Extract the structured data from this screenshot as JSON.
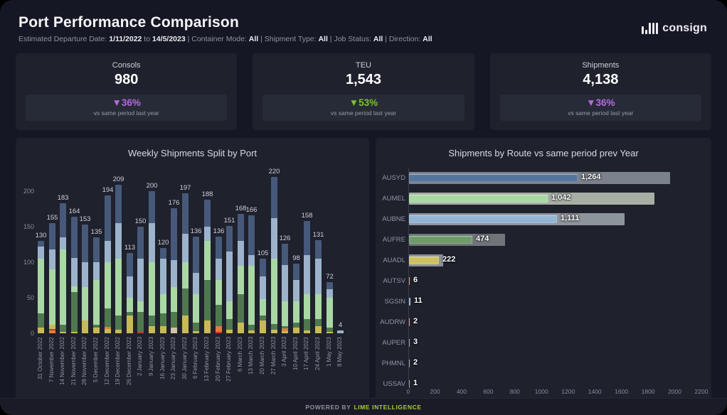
{
  "header": {
    "title": "Port Performance Comparison",
    "filters": [
      {
        "text": "Estimated Departure Date: ",
        "bold": false
      },
      {
        "text": "1/11/2022",
        "bold": true
      },
      {
        "text": " to ",
        "bold": false
      },
      {
        "text": "14/5/2023",
        "bold": true
      },
      {
        "text": " | Container Mode: ",
        "bold": false
      },
      {
        "text": "All",
        "bold": true
      },
      {
        "text": " | Shipment Type: ",
        "bold": false
      },
      {
        "text": "All",
        "bold": true
      },
      {
        "text": " | Job Status: ",
        "bold": false
      },
      {
        "text": "All",
        "bold": true
      },
      {
        "text": " | Direction: ",
        "bold": false
      },
      {
        "text": "All",
        "bold": true
      }
    ],
    "logo_text": "consign"
  },
  "kpi_cards": [
    {
      "label": "Consols",
      "value": "980",
      "delta_icon": "▼",
      "delta": "36%",
      "delta_color": "#b56be0",
      "note": "vs same period last year"
    },
    {
      "label": "TEU",
      "value": "1,543",
      "delta_icon": "▼",
      "delta": "53%",
      "delta_color": "#7cc22e",
      "note": "vs same period last year"
    },
    {
      "label": "Shipments",
      "value": "4,138",
      "delta_icon": "▼",
      "delta": "36%",
      "delta_color": "#b56be0",
      "note": "vs same period last year"
    }
  ],
  "chart_data": [
    {
      "type": "bar",
      "stacked": true,
      "title": "Weekly Shipments Split by Port",
      "xlabel": "",
      "ylabel": "",
      "yticks": [
        0,
        50,
        100,
        150,
        200
      ],
      "ylim": [
        0,
        230
      ],
      "grid": false,
      "segment_colors": {
        "yellow": "#c8ba55",
        "orange": "#de7e3b",
        "red": "#c03a2b",
        "tan": "#d3c3a9",
        "dkgreen": "#50784f",
        "ltgreen": "#a9d8a4",
        "ltblue": "#9db3cc",
        "navy": "#46597a"
      },
      "bars": [
        {
          "label": "31 October 2022",
          "total": 130,
          "parts": [
            [
              "yellow",
              8
            ],
            [
              "dkgreen",
              20
            ],
            [
              "ltgreen",
              77
            ],
            [
              "ltblue",
              17
            ],
            [
              "navy",
              8
            ]
          ]
        },
        {
          "label": "7 November 2022",
          "total": 155,
          "parts": [
            [
              "orange",
              4
            ],
            [
              "red",
              2
            ],
            [
              "yellow",
              6
            ],
            [
              "ltgreen",
              78
            ],
            [
              "ltblue",
              28
            ],
            [
              "navy",
              37
            ]
          ]
        },
        {
          "label": "14 November 2022",
          "total": 183,
          "parts": [
            [
              "yellow",
              2
            ],
            [
              "dkgreen",
              10
            ],
            [
              "ltgreen",
              106
            ],
            [
              "ltblue",
              17
            ],
            [
              "navy",
              48
            ]
          ]
        },
        {
          "label": "21 November 2022",
          "total": 164,
          "parts": [
            [
              "yellow",
              2
            ],
            [
              "dkgreen",
              56
            ],
            [
              "ltgreen",
              8
            ],
            [
              "ltblue",
              40
            ],
            [
              "navy",
              58
            ]
          ]
        },
        {
          "label": "28 November 2022",
          "total": 153,
          "parts": [
            [
              "yellow",
              18
            ],
            [
              "ltgreen",
              47
            ],
            [
              "ltblue",
              35
            ],
            [
              "navy",
              53
            ]
          ]
        },
        {
          "label": "5 December 2022",
          "total": 135,
          "parts": [
            [
              "yellow",
              8
            ],
            [
              "dkgreen",
              4
            ],
            [
              "ltgreen",
              63
            ],
            [
              "ltblue",
              25
            ],
            [
              "navy",
              35
            ]
          ]
        },
        {
          "label": "12 December 2022",
          "total": 194,
          "parts": [
            [
              "yellow",
              6
            ],
            [
              "orange",
              3
            ],
            [
              "dkgreen",
              26
            ],
            [
              "ltgreen",
              65
            ],
            [
              "ltblue",
              30
            ],
            [
              "navy",
              64
            ]
          ]
        },
        {
          "label": "19 December 2022",
          "total": 209,
          "parts": [
            [
              "yellow",
              5
            ],
            [
              "dkgreen",
              20
            ],
            [
              "ltgreen",
              80
            ],
            [
              "ltblue",
              50
            ],
            [
              "navy",
              54
            ]
          ]
        },
        {
          "label": "26 December 2022",
          "total": 113,
          "parts": [
            [
              "yellow",
              25
            ],
            [
              "dkgreen",
              5
            ],
            [
              "ltgreen",
              20
            ],
            [
              "ltblue",
              30
            ],
            [
              "navy",
              33
            ]
          ]
        },
        {
          "label": "2 January 2023",
          "total": 150,
          "parts": [
            [
              "red",
              2
            ],
            [
              "dkgreen",
              28
            ],
            [
              "ltgreen",
              15
            ],
            [
              "ltblue",
              60
            ],
            [
              "navy",
              45
            ]
          ]
        },
        {
          "label": "9 January 2023",
          "total": 200,
          "parts": [
            [
              "yellow",
              10
            ],
            [
              "dkgreen",
              15
            ],
            [
              "ltgreen",
              75
            ],
            [
              "ltblue",
              55
            ],
            [
              "navy",
              45
            ]
          ]
        },
        {
          "label": "16 January 2023",
          "total": 120,
          "parts": [
            [
              "yellow",
              10
            ],
            [
              "dkgreen",
              18
            ],
            [
              "ltgreen",
              27
            ],
            [
              "ltblue",
              50
            ],
            [
              "navy",
              15
            ]
          ]
        },
        {
          "label": "23 January 2023",
          "total": 176,
          "parts": [
            [
              "tan",
              8
            ],
            [
              "dkgreen",
              22
            ],
            [
              "ltgreen",
              35
            ],
            [
              "ltblue",
              38
            ],
            [
              "navy",
              73
            ]
          ]
        },
        {
          "label": "30 January 2023",
          "total": 197,
          "parts": [
            [
              "yellow",
              25
            ],
            [
              "dkgreen",
              38
            ],
            [
              "ltgreen",
              37
            ],
            [
              "ltblue",
              40
            ],
            [
              "navy",
              57
            ]
          ]
        },
        {
          "label": "6 February 2023",
          "total": 136,
          "parts": [
            [
              "yellow",
              3
            ],
            [
              "dkgreen",
              12
            ],
            [
              "ltgreen",
              40
            ],
            [
              "ltblue",
              30
            ],
            [
              "navy",
              51
            ]
          ]
        },
        {
          "label": "13 February 2023",
          "total": 188,
          "parts": [
            [
              "yellow",
              18
            ],
            [
              "dkgreen",
              57
            ],
            [
              "ltgreen",
              55
            ],
            [
              "ltblue",
              20
            ],
            [
              "navy",
              38
            ]
          ]
        },
        {
          "label": "20 February 2023",
          "total": 136,
          "parts": [
            [
              "red",
              2
            ],
            [
              "orange",
              8
            ],
            [
              "dkgreen",
              30
            ],
            [
              "ltgreen",
              35
            ],
            [
              "ltblue",
              30
            ],
            [
              "navy",
              31
            ]
          ]
        },
        {
          "label": "27 February 2023",
          "total": 151,
          "parts": [
            [
              "yellow",
              5
            ],
            [
              "dkgreen",
              15
            ],
            [
              "ltgreen",
              25
            ],
            [
              "ltblue",
              70
            ],
            [
              "navy",
              36
            ]
          ]
        },
        {
          "label": "6 March 2023",
          "total": 168,
          "parts": [
            [
              "yellow",
              15
            ],
            [
              "dkgreen",
              40
            ],
            [
              "ltgreen",
              40
            ],
            [
              "ltblue",
              35
            ],
            [
              "navy",
              38
            ]
          ]
        },
        {
          "label": "13 March 2023",
          "total": 166,
          "parts": [
            [
              "yellow",
              4
            ],
            [
              "dkgreen",
              8
            ],
            [
              "ltgreen",
              83
            ],
            [
              "ltblue",
              15
            ],
            [
              "navy",
              56
            ]
          ]
        },
        {
          "label": "20 March 2023",
          "total": 105,
          "parts": [
            [
              "yellow",
              18
            ],
            [
              "dkgreen",
              7
            ],
            [
              "ltgreen",
              23
            ],
            [
              "ltblue",
              32
            ],
            [
              "navy",
              25
            ]
          ]
        },
        {
          "label": "27 March 2023",
          "total": 220,
          "parts": [
            [
              "yellow",
              5
            ],
            [
              "dkgreen",
              8
            ],
            [
              "ltgreen",
              92
            ],
            [
              "ltblue",
              57
            ],
            [
              "navy",
              58
            ]
          ]
        },
        {
          "label": "3 April 2023",
          "total": 126,
          "parts": [
            [
              "yellow",
              3
            ],
            [
              "orange",
              4
            ],
            [
              "dkgreen",
              3
            ],
            [
              "ltgreen",
              35
            ],
            [
              "ltblue",
              51
            ],
            [
              "navy",
              30
            ]
          ]
        },
        {
          "label": "10 April 2023",
          "total": 98,
          "parts": [
            [
              "yellow",
              8
            ],
            [
              "dkgreen",
              7
            ],
            [
              "ltgreen",
              30
            ],
            [
              "ltblue",
              30
            ],
            [
              "navy",
              23
            ]
          ]
        },
        {
          "label": "17 April 2023",
          "total": 158,
          "parts": [
            [
              "yellow",
              4
            ],
            [
              "dkgreen",
              16
            ],
            [
              "ltgreen",
              35
            ],
            [
              "ltblue",
              55
            ],
            [
              "navy",
              48
            ]
          ]
        },
        {
          "label": "24 April 2023",
          "total": 131,
          "parts": [
            [
              "yellow",
              10
            ],
            [
              "dkgreen",
              10
            ],
            [
              "ltgreen",
              35
            ],
            [
              "ltblue",
              50
            ],
            [
              "navy",
              26
            ]
          ]
        },
        {
          "label": "1 May 2023",
          "total": 72,
          "parts": [
            [
              "yellow",
              2
            ],
            [
              "dkgreen",
              6
            ],
            [
              "ltgreen",
              42
            ],
            [
              "ltblue",
              12
            ],
            [
              "navy",
              10
            ]
          ]
        },
        {
          "label": "8 May 2023",
          "total": 4,
          "parts": [
            [
              "ltblue",
              4
            ]
          ]
        }
      ]
    },
    {
      "type": "bar",
      "orientation": "horizontal",
      "title": "Shipments by Route vs same period prev Year",
      "xticks": [
        0,
        200,
        400,
        600,
        800,
        1000,
        1200,
        1400,
        1600,
        1800,
        2000,
        2200
      ],
      "xlim": [
        0,
        2200
      ],
      "grid": false,
      "rows": [
        {
          "route": "AUSYD",
          "current": 1264,
          "label": "1,264",
          "prev": 1960,
          "color": "#54759c",
          "prev_color": "#7c828c"
        },
        {
          "route": "AUMEL",
          "current": 1042,
          "label": "1,042",
          "prev": 1840,
          "color": "#a9d8a4",
          "prev_color": "#a7afa4"
        },
        {
          "route": "AUBNE",
          "current": 1111,
          "label": "1,111",
          "prev": 1620,
          "color": "#93b4d3",
          "prev_color": "#8e949c"
        },
        {
          "route": "AUFRE",
          "current": 474,
          "label": "474",
          "prev": 720,
          "color": "#6e9b68",
          "prev_color": "#70757a"
        },
        {
          "route": "AUADL",
          "current": 222,
          "label": "222",
          "prev": 255,
          "color": "#ccc15e",
          "prev_color": "#8c9097"
        },
        {
          "route": "AUTSV",
          "current": 6,
          "label": "6",
          "prev": 0,
          "color": "#d78e66",
          "prev_color": "#7c828c"
        },
        {
          "route": "SGSIN",
          "current": 11,
          "label": "11",
          "prev": 0,
          "color": "#86abc9",
          "prev_color": "#7c828c"
        },
        {
          "route": "AUDRW",
          "current": 2,
          "label": "2",
          "prev": 0,
          "color": "#d78e66",
          "prev_color": "#7c828c"
        },
        {
          "route": "AUPER",
          "current": 3,
          "label": "3",
          "prev": 0,
          "color": "#8a8f98",
          "prev_color": "#7c828c"
        },
        {
          "route": "PHMNL",
          "current": 2,
          "label": "2",
          "prev": 0,
          "color": "#8a8f98",
          "prev_color": "#7c828c"
        },
        {
          "route": "USSAV",
          "current": 1,
          "label": "1",
          "prev": 0,
          "color": "#8a8f98",
          "prev_color": "#7c828c"
        }
      ]
    }
  ],
  "footer": {
    "powered_by": "POWERED BY",
    "brand": "LIME INTELLIGENCE"
  }
}
